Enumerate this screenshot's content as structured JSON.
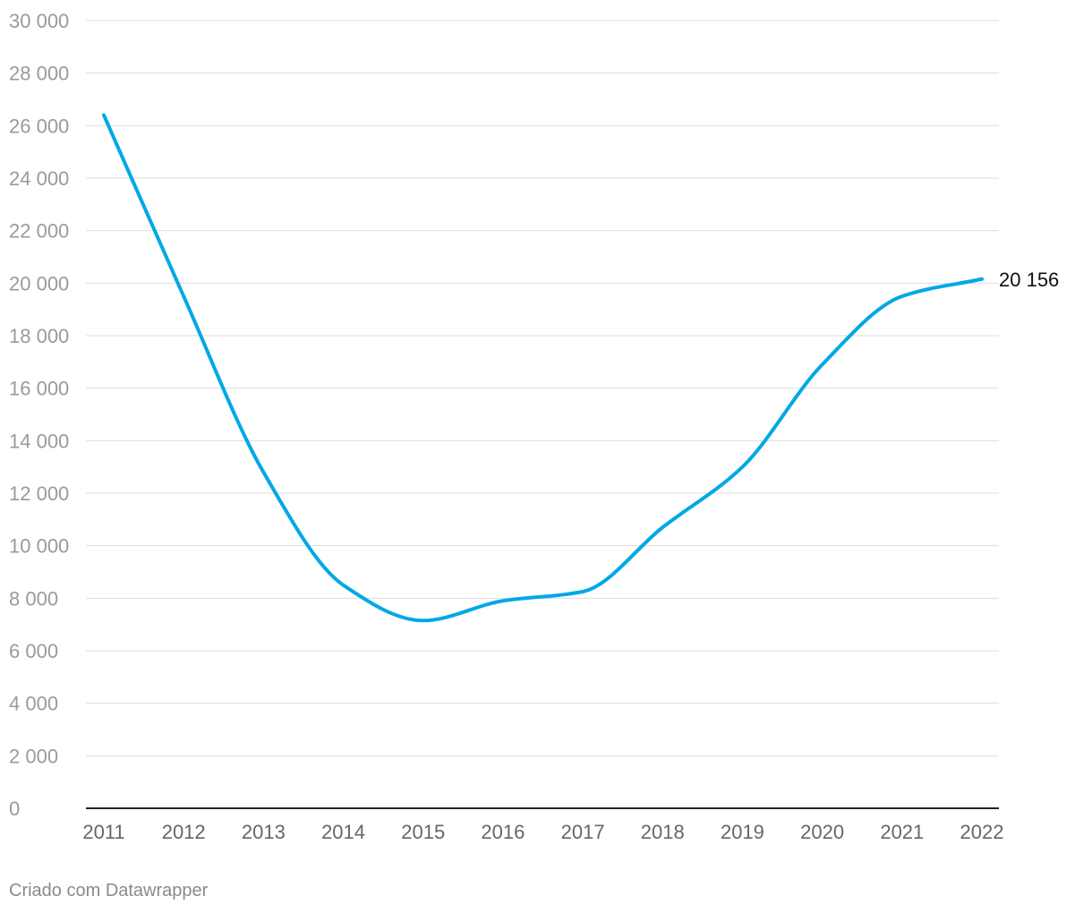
{
  "chart_data": {
    "type": "line",
    "title": "",
    "xlabel": "",
    "ylabel": "",
    "x": [
      "2011",
      "2012",
      "2013",
      "2014",
      "2015",
      "2016",
      "2017",
      "2018",
      "2019",
      "2020",
      "2021",
      "2022"
    ],
    "series": [
      {
        "color": "#00a8e6",
        "values": [
          26400,
          19500,
          12800,
          8500,
          7150,
          7900,
          8250,
          10700,
          13000,
          16900,
          19500,
          20156
        ]
      }
    ],
    "ylim": [
      0,
      30000
    ],
    "yticks": [
      0,
      2000,
      4000,
      6000,
      8000,
      10000,
      12000,
      14000,
      16000,
      18000,
      20000,
      22000,
      24000,
      26000,
      28000,
      30000
    ],
    "ytick_labels": [
      "0",
      "2 000",
      "4 000",
      "6 000",
      "8 000",
      "10 000",
      "12 000",
      "14 000",
      "16 000",
      "18 000",
      "20 000",
      "22 000",
      "24 000",
      "26 000",
      "28 000",
      "30 000"
    ],
    "end_label": "20 156",
    "grid": true,
    "legend": "none"
  },
  "footer": {
    "credit": "Criado com Datawrapper"
  }
}
